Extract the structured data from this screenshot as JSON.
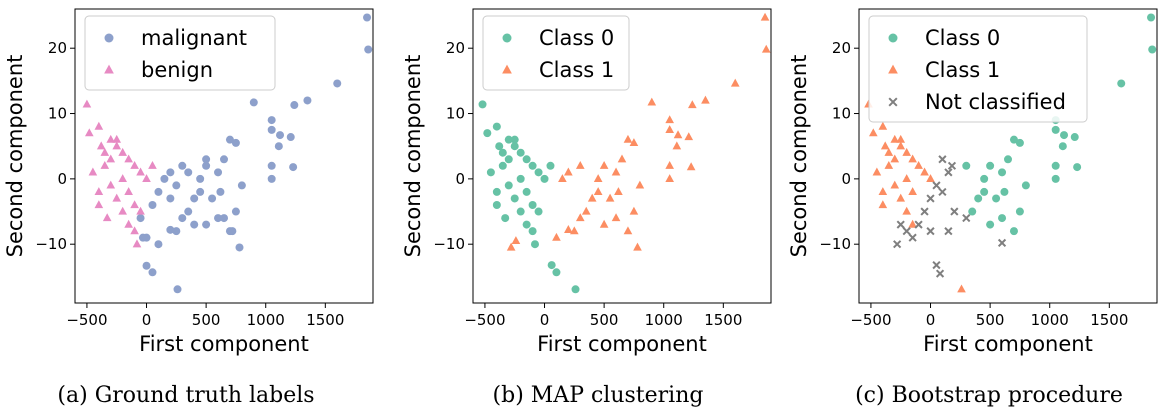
{
  "colors": {
    "malignant": "#8da0cb",
    "benign": "#e78ac3",
    "class0": "#66c2a5",
    "class1": "#fc8d62",
    "not_classified": "#7f7f7f"
  },
  "chart_data": [
    {
      "type": "scatter",
      "caption": "(a) Ground truth labels",
      "xlabel": "First component",
      "ylabel": "Second component",
      "xlim": [
        -600,
        1900
      ],
      "ylim": [
        -19,
        26
      ],
      "xticks": [
        -500,
        0,
        500,
        1000,
        1500
      ],
      "xtick_labels": [
        "−500",
        "0",
        "500",
        "1000",
        "1500"
      ],
      "yticks": [
        -10,
        0,
        10,
        20
      ],
      "ytick_labels": [
        "−10",
        "0",
        "10",
        "20"
      ],
      "legend_position": "upper-left",
      "series": [
        {
          "name": "malignant",
          "marker": "circle",
          "color": "#8da0cb",
          "points": [
            [
              1850,
              24.7
            ],
            [
              1860,
              19.8
            ],
            [
              1600,
              14.6
            ],
            [
              1350,
              12
            ],
            [
              1240,
              11.3
            ],
            [
              900,
              11.7
            ],
            [
              1050,
              9
            ],
            [
              1050,
              7.5
            ],
            [
              1120,
              6.7
            ],
            [
              1210,
              6.4
            ],
            [
              1110,
              5
            ],
            [
              1230,
              1.8
            ],
            [
              1050,
              2
            ],
            [
              1050,
              0
            ],
            [
              700,
              6
            ],
            [
              750,
              5.5
            ],
            [
              650,
              3
            ],
            [
              600,
              1
            ],
            [
              500,
              2
            ],
            [
              450,
              -2
            ],
            [
              400,
              -3
            ],
            [
              350,
              -5
            ],
            [
              300,
              -6
            ],
            [
              250,
              -8
            ],
            [
              200,
              -7.8
            ],
            [
              0,
              -9
            ],
            [
              100,
              -10
            ],
            [
              600,
              -6
            ],
            [
              700,
              -8
            ],
            [
              500,
              -7
            ],
            [
              550,
              -3
            ],
            [
              450,
              0
            ],
            [
              300,
              2
            ],
            [
              200,
              1
            ],
            [
              150,
              0
            ],
            [
              100,
              -2
            ],
            [
              50,
              -4
            ],
            [
              -50,
              -6
            ],
            [
              -30,
              -9
            ],
            [
              0,
              -13.3
            ],
            [
              50,
              -14.3
            ],
            [
              260,
              -16.9
            ],
            [
              780,
              -10.5
            ],
            [
              720,
              -8
            ],
            [
              650,
              -6
            ],
            [
              400,
              -7
            ],
            [
              200,
              -3
            ],
            [
              250,
              -1
            ],
            [
              350,
              1
            ],
            [
              500,
              3
            ],
            [
              620,
              -2
            ],
            [
              800,
              -1
            ],
            [
              750,
              -5
            ]
          ]
        },
        {
          "name": "benign",
          "marker": "triangle",
          "color": "#e78ac3",
          "points": [
            [
              -500,
              11.4
            ],
            [
              -480,
              7
            ],
            [
              -400,
              8
            ],
            [
              -300,
              6
            ],
            [
              -250,
              5
            ],
            [
              -200,
              4
            ],
            [
              -150,
              3
            ],
            [
              -100,
              2
            ],
            [
              -50,
              1
            ],
            [
              0,
              0
            ],
            [
              -350,
              2
            ],
            [
              -300,
              -1
            ],
            [
              -250,
              -3
            ],
            [
              -200,
              -5
            ],
            [
              -150,
              -7
            ],
            [
              -100,
              -8
            ],
            [
              -50,
              -5
            ],
            [
              -400,
              -2
            ],
            [
              -450,
              1
            ],
            [
              -350,
              4
            ],
            [
              -200,
              0
            ],
            [
              -300,
              3
            ],
            [
              -150,
              -2
            ],
            [
              -100,
              -4
            ],
            [
              50,
              2
            ],
            [
              -250,
              6
            ],
            [
              -400,
              -4
            ],
            [
              -330,
              -6
            ],
            [
              -80,
              -10
            ],
            [
              -380,
              5
            ]
          ]
        }
      ]
    },
    {
      "type": "scatter",
      "caption": "(b) MAP clustering",
      "xlabel": "First component",
      "ylabel": "Second component",
      "xlim": [
        -600,
        1900
      ],
      "ylim": [
        -19,
        26
      ],
      "xticks": [
        -500,
        0,
        500,
        1000,
        1500
      ],
      "xtick_labels": [
        "−500",
        "0",
        "500",
        "1000",
        "1500"
      ],
      "yticks": [
        -10,
        0,
        10,
        20
      ],
      "ytick_labels": [
        "−10",
        "0",
        "10",
        "20"
      ],
      "legend_position": "upper-left",
      "series": [
        {
          "name": "Class 0",
          "marker": "circle",
          "color": "#66c2a5",
          "points": [
            [
              -520,
              11.4
            ],
            [
              -480,
              7
            ],
            [
              -400,
              8
            ],
            [
              -300,
              6
            ],
            [
              -250,
              5
            ],
            [
              -200,
              4
            ],
            [
              -150,
              3
            ],
            [
              -100,
              2
            ],
            [
              -50,
              1
            ],
            [
              0,
              0
            ],
            [
              -350,
              2
            ],
            [
              -300,
              -1
            ],
            [
              -250,
              -3
            ],
            [
              -200,
              -5
            ],
            [
              -150,
              -7
            ],
            [
              -100,
              -8
            ],
            [
              -50,
              -5
            ],
            [
              -400,
              -2
            ],
            [
              -450,
              1
            ],
            [
              -350,
              4
            ],
            [
              -200,
              0
            ],
            [
              -300,
              3
            ],
            [
              -150,
              -2
            ],
            [
              -100,
              -4
            ],
            [
              50,
              2
            ],
            [
              -250,
              6
            ],
            [
              -400,
              -4
            ],
            [
              -330,
              -6
            ],
            [
              -80,
              -10
            ],
            [
              60,
              -13.2
            ],
            [
              100,
              -14.3
            ],
            [
              260,
              -16.9
            ],
            [
              -380,
              5
            ]
          ]
        },
        {
          "name": "Class 1",
          "marker": "triangle",
          "color": "#fc8d62",
          "points": [
            [
              1850,
              24.7
            ],
            [
              1860,
              19.8
            ],
            [
              1600,
              14.6
            ],
            [
              1350,
              12
            ],
            [
              1240,
              11.3
            ],
            [
              900,
              11.7
            ],
            [
              1050,
              9
            ],
            [
              1050,
              7.5
            ],
            [
              1120,
              6.7
            ],
            [
              1210,
              6.4
            ],
            [
              1110,
              5
            ],
            [
              1230,
              1.8
            ],
            [
              1050,
              2
            ],
            [
              1050,
              0
            ],
            [
              700,
              6
            ],
            [
              750,
              5.5
            ],
            [
              650,
              3
            ],
            [
              600,
              1
            ],
            [
              500,
              2
            ],
            [
              450,
              -2
            ],
            [
              400,
              -3
            ],
            [
              350,
              -5
            ],
            [
              300,
              -6
            ],
            [
              250,
              -8
            ],
            [
              200,
              -7.8
            ],
            [
              100,
              -9
            ],
            [
              600,
              -6
            ],
            [
              700,
              -8
            ],
            [
              500,
              -7
            ],
            [
              550,
              -3
            ],
            [
              450,
              0
            ],
            [
              300,
              2
            ],
            [
              200,
              1
            ],
            [
              150,
              0
            ],
            [
              780,
              -10.5
            ],
            [
              -240,
              -9.5
            ],
            [
              -280,
              -10.5
            ],
            [
              620,
              -2
            ],
            [
              800,
              -1
            ],
            [
              750,
              -5
            ]
          ]
        }
      ]
    },
    {
      "type": "scatter",
      "caption": "(c) Bootstrap procedure",
      "xlabel": "First component",
      "ylabel": "Second component",
      "xlim": [
        -600,
        1900
      ],
      "ylim": [
        -19,
        26
      ],
      "xticks": [
        -500,
        0,
        500,
        1000,
        1500
      ],
      "xtick_labels": [
        "−500",
        "0",
        "500",
        "1000",
        "1500"
      ],
      "yticks": [
        -10,
        0,
        10,
        20
      ],
      "ytick_labels": [
        "−10",
        "0",
        "10",
        "20"
      ],
      "legend_position": "upper-left",
      "series": [
        {
          "name": "Class 0",
          "marker": "circle",
          "color": "#66c2a5",
          "points": [
            [
              1850,
              24.7
            ],
            [
              1860,
              19.8
            ],
            [
              1600,
              14.6
            ],
            [
              1050,
              9
            ],
            [
              1050,
              7.5
            ],
            [
              1120,
              6.7
            ],
            [
              1210,
              6.4
            ],
            [
              1110,
              5
            ],
            [
              1230,
              1.8
            ],
            [
              1050,
              2
            ],
            [
              1050,
              0
            ],
            [
              700,
              6
            ],
            [
              750,
              5.5
            ],
            [
              650,
              3
            ],
            [
              600,
              1
            ],
            [
              500,
              2
            ],
            [
              450,
              -2
            ],
            [
              400,
              -3
            ],
            [
              350,
              -5
            ],
            [
              550,
              -3
            ],
            [
              450,
              0
            ],
            [
              300,
              2
            ],
            [
              620,
              -2
            ],
            [
              800,
              -1
            ],
            [
              750,
              -5
            ],
            [
              600,
              -6
            ],
            [
              700,
              -8
            ],
            [
              500,
              -7
            ]
          ]
        },
        {
          "name": "Class 1",
          "marker": "triangle",
          "color": "#fc8d62",
          "points": [
            [
              -520,
              11.4
            ],
            [
              -480,
              7
            ],
            [
              -400,
              8
            ],
            [
              -300,
              6
            ],
            [
              -250,
              5
            ],
            [
              -200,
              4
            ],
            [
              -150,
              3
            ],
            [
              -100,
              2
            ],
            [
              -50,
              1
            ],
            [
              0,
              0
            ],
            [
              -350,
              2
            ],
            [
              -300,
              -1
            ],
            [
              -250,
              -3
            ],
            [
              -200,
              -5
            ],
            [
              -150,
              -7
            ],
            [
              -400,
              -2
            ],
            [
              -450,
              1
            ],
            [
              -350,
              4
            ],
            [
              -200,
              0
            ],
            [
              -300,
              3
            ],
            [
              -150,
              -2
            ],
            [
              -250,
              6
            ],
            [
              -400,
              -4
            ],
            [
              -380,
              5
            ],
            [
              260,
              -16.9
            ]
          ]
        },
        {
          "name": "Not classified",
          "marker": "x",
          "color": "#7f7f7f",
          "points": [
            [
              100,
              3
            ],
            [
              150,
              1
            ],
            [
              50,
              -1
            ],
            [
              0,
              -3
            ],
            [
              -50,
              -5
            ],
            [
              -100,
              -7
            ],
            [
              -200,
              -8
            ],
            [
              -280,
              -10
            ],
            [
              50,
              -13.2
            ],
            [
              80,
              -14.5
            ],
            [
              180,
              2
            ],
            [
              100,
              -2
            ],
            [
              200,
              -5
            ],
            [
              -150,
              -9
            ],
            [
              -250,
              -7
            ],
            [
              0,
              -8
            ],
            [
              150,
              -8
            ],
            [
              300,
              -6
            ],
            [
              600,
              -9.8
            ]
          ]
        }
      ]
    }
  ]
}
